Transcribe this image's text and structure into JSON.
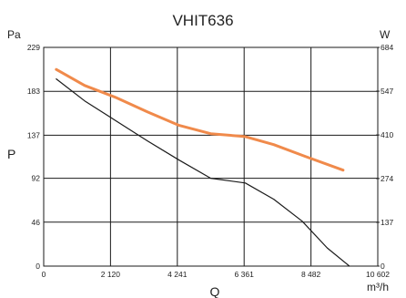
{
  "chart_data": {
    "type": "line",
    "title": "VHIT636",
    "xlabel": "Q",
    "xunit": "m³/h",
    "ylabel": "P",
    "yunit_left": "Pa",
    "yunit_right": "W",
    "x_ticks": [
      0,
      2120,
      4241,
      6361,
      8482,
      10602
    ],
    "x_tick_labels": [
      "0",
      "2 120",
      "4 241",
      "6 361",
      "8 482",
      "10 602"
    ],
    "xlim": [
      0,
      10602
    ],
    "y_left_ticks": [
      0,
      46,
      92,
      137,
      183,
      229
    ],
    "y_left_tick_labels": [
      "0",
      "46",
      "92",
      "137",
      "183",
      "229"
    ],
    "ylim_left": [
      0,
      229
    ],
    "y_right_ticks": [
      0,
      137,
      274,
      410,
      547,
      684
    ],
    "y_right_tick_labels": [
      "0",
      "137",
      "274",
      "410",
      "547",
      "684"
    ],
    "ylim_right": [
      0,
      684
    ],
    "grid": true,
    "series": [
      {
        "axis": "left",
        "color": "#1a1a1a",
        "x": [
          400,
          1300,
          2300,
          3300,
          4300,
          5300,
          6400,
          7300,
          8200,
          9000,
          9700
        ],
        "y": [
          196,
          173,
          152,
          131,
          111,
          92,
          87,
          70,
          47,
          19,
          0
        ]
      },
      {
        "axis": "right",
        "color": "#f08a4b",
        "x": [
          400,
          1300,
          2300,
          3300,
          4300,
          5300,
          6400,
          7300,
          8300,
          9500
        ],
        "y": [
          615,
          565,
          527,
          482,
          440,
          414,
          405,
          380,
          343,
          300
        ]
      }
    ]
  }
}
